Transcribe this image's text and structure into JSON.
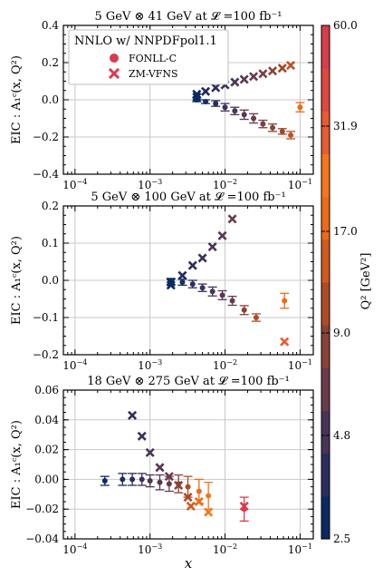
{
  "chart_data": {
    "type": "scatter",
    "xlabel": "x",
    "x_log": true,
    "xlim": [
      7e-05,
      0.15
    ],
    "x_ticks": [
      {
        "v": 0.0001,
        "b": "10",
        "e": "−4"
      },
      {
        "v": 0.001,
        "b": "10",
        "e": "−3"
      },
      {
        "v": 0.01,
        "b": "10",
        "e": "−2"
      },
      {
        "v": 0.1,
        "b": "10",
        "e": "−1"
      }
    ],
    "legend": {
      "title": "NNLO w/ NNPDFpol1.1",
      "placement": "top-left",
      "entries": [
        {
          "label": "FONLL-C",
          "marker": "circle"
        },
        {
          "label": "ZM-VFNS",
          "marker": "x"
        }
      ]
    },
    "colorbar": {
      "label": "Q² [GeV²]",
      "ticks": [
        "2.5",
        "4.8",
        "9.0",
        "17.0",
        "31.9",
        "60.0"
      ],
      "colors": [
        "#0b2a63",
        "#2b2d5e",
        "#4a3358",
        "#6b3a4c",
        "#8a4236",
        "#b04a24",
        "#d25a1c",
        "#ee6a16",
        "#f7751a",
        "#ea5a32",
        "#e2473f",
        "#d93c4b"
      ]
    },
    "panels": [
      {
        "title": "5 GeV ⊗ 41 GeV at 𝓛 =100 fb⁻¹",
        "ylabel": "EIC : A₁ᶜ(x, Q²)",
        "ylim": [
          -0.4,
          0.4
        ],
        "y_ticks": [
          "0.4",
          "0.2",
          "0.0",
          "−0.2",
          "−0.4"
        ],
        "y_tick_values": [
          0.4,
          0.2,
          0.0,
          -0.2,
          -0.4
        ],
        "fonll": [
          {
            "x": 0.0042,
            "y": 0.0,
            "err": 0.01,
            "color": "#0b2a63"
          },
          {
            "x": 0.0055,
            "y": -0.01,
            "err": 0.01,
            "color": "#1d2c60"
          },
          {
            "x": 0.0075,
            "y": -0.02,
            "err": 0.015,
            "color": "#2b2d5e"
          },
          {
            "x": 0.01,
            "y": -0.04,
            "err": 0.02,
            "color": "#3b305b"
          },
          {
            "x": 0.0135,
            "y": -0.06,
            "err": 0.02,
            "color": "#4a3358"
          },
          {
            "x": 0.018,
            "y": -0.08,
            "err": 0.025,
            "color": "#5b3652"
          },
          {
            "x": 0.024,
            "y": -0.1,
            "err": 0.025,
            "color": "#6b3a4c"
          },
          {
            "x": 0.032,
            "y": -0.13,
            "err": 0.02,
            "color": "#7b3e42"
          },
          {
            "x": 0.043,
            "y": -0.15,
            "err": 0.02,
            "color": "#8a4236"
          },
          {
            "x": 0.058,
            "y": -0.17,
            "err": 0.015,
            "color": "#a0472a"
          },
          {
            "x": 0.075,
            "y": -0.19,
            "err": 0.02,
            "color": "#c0501f"
          },
          {
            "x": 0.1,
            "y": -0.04,
            "err": 0.025,
            "color": "#ee6a16"
          }
        ],
        "zm": [
          {
            "x": 0.0042,
            "y": 0.03,
            "color": "#0b2a63"
          },
          {
            "x": 0.0042,
            "y": 0.015,
            "color": "#0b2a63"
          },
          {
            "x": 0.0055,
            "y": 0.045,
            "color": "#1d2c60"
          },
          {
            "x": 0.0075,
            "y": 0.065,
            "color": "#2b2d5e"
          },
          {
            "x": 0.01,
            "y": 0.08,
            "color": "#3b305b"
          },
          {
            "x": 0.0135,
            "y": 0.095,
            "color": "#4a3358"
          },
          {
            "x": 0.018,
            "y": 0.11,
            "color": "#5b3652"
          },
          {
            "x": 0.024,
            "y": 0.125,
            "color": "#6b3a4c"
          },
          {
            "x": 0.032,
            "y": 0.14,
            "color": "#7b3e42"
          },
          {
            "x": 0.043,
            "y": 0.155,
            "color": "#8a4236"
          },
          {
            "x": 0.058,
            "y": 0.17,
            "color": "#a0472a"
          },
          {
            "x": 0.075,
            "y": 0.185,
            "color": "#c0501f"
          }
        ]
      },
      {
        "title": "5 GeV ⊗ 100 GeV at 𝓛 =100 fb⁻¹",
        "ylabel": "EIC : A₁ᶜ(x, Q²)",
        "ylim": [
          -0.2,
          0.2
        ],
        "y_ticks": [
          "0.2",
          "0.1",
          "0.0",
          "−0.1",
          "−0.2"
        ],
        "y_tick_values": [
          0.2,
          0.1,
          0.0,
          -0.1,
          -0.2
        ],
        "fonll": [
          {
            "x": 0.0019,
            "y": -0.003,
            "err": 0.008,
            "color": "#0b2a63"
          },
          {
            "x": 0.0027,
            "y": -0.005,
            "err": 0.008,
            "color": "#1d2c60"
          },
          {
            "x": 0.0037,
            "y": -0.01,
            "err": 0.01,
            "color": "#2b2d5e"
          },
          {
            "x": 0.005,
            "y": -0.02,
            "err": 0.01,
            "color": "#3b305b"
          },
          {
            "x": 0.0068,
            "y": -0.03,
            "err": 0.012,
            "color": "#4a3358"
          },
          {
            "x": 0.0092,
            "y": -0.04,
            "err": 0.012,
            "color": "#5b3652"
          },
          {
            "x": 0.0125,
            "y": -0.055,
            "err": 0.012,
            "color": "#6b3a4c"
          },
          {
            "x": 0.018,
            "y": -0.08,
            "err": 0.012,
            "color": "#8a4236"
          },
          {
            "x": 0.026,
            "y": -0.1,
            "err": 0.01,
            "color": "#b04a24"
          },
          {
            "x": 0.062,
            "y": -0.055,
            "err": 0.02,
            "color": "#ee6a16"
          }
        ],
        "zm": [
          {
            "x": 0.0019,
            "y": -0.005,
            "color": "#0b2a63"
          },
          {
            "x": 0.0019,
            "y": -0.013,
            "color": "#0b2a63"
          },
          {
            "x": 0.0027,
            "y": 0.013,
            "color": "#1d2c60"
          },
          {
            "x": 0.0037,
            "y": 0.04,
            "color": "#2b2d5e"
          },
          {
            "x": 0.005,
            "y": 0.06,
            "color": "#3b305b"
          },
          {
            "x": 0.0068,
            "y": 0.09,
            "color": "#4a3358"
          },
          {
            "x": 0.0092,
            "y": 0.12,
            "color": "#5b3652"
          },
          {
            "x": 0.0125,
            "y": 0.165,
            "color": "#6b3a4c"
          },
          {
            "x": 0.062,
            "y": -0.165,
            "color": "#ea5a32"
          }
        ]
      },
      {
        "title": "18 GeV ⊗ 275 GeV at 𝓛 =100 fb⁻¹",
        "ylabel": "EIC : A₁ᶜ(x, Q²)",
        "ylim": [
          -0.04,
          0.06
        ],
        "y_ticks": [
          "0.06",
          "0.04",
          "0.02",
          "0.00",
          "−0.02",
          "−0.04"
        ],
        "y_tick_values": [
          0.06,
          0.04,
          0.02,
          0.0,
          -0.02,
          -0.04
        ],
        "fonll": [
          {
            "x": 0.00025,
            "y": -0.001,
            "err": 0.003,
            "color": "#0b2a63"
          },
          {
            "x": 0.00043,
            "y": 0.0,
            "err": 0.004,
            "color": "#1d2c60"
          },
          {
            "x": 0.00058,
            "y": 0.0,
            "err": 0.004,
            "color": "#2b2d5e"
          },
          {
            "x": 0.00078,
            "y": 0.0,
            "err": 0.004,
            "color": "#3b305b"
          },
          {
            "x": 0.001,
            "y": -0.001,
            "err": 0.004,
            "color": "#4a3358"
          },
          {
            "x": 0.00135,
            "y": -0.002,
            "err": 0.005,
            "color": "#5b3652"
          },
          {
            "x": 0.0018,
            "y": -0.003,
            "err": 0.005,
            "color": "#6b3a4c"
          },
          {
            "x": 0.0024,
            "y": -0.003,
            "err": 0.006,
            "color": "#8a4236"
          },
          {
            "x": 0.0032,
            "y": -0.005,
            "err": 0.007,
            "color": "#b04a24"
          },
          {
            "x": 0.0045,
            "y": -0.008,
            "err": 0.008,
            "color": "#ee6a16"
          },
          {
            "x": 0.006,
            "y": -0.011,
            "err": 0.009,
            "color": "#f7751a"
          },
          {
            "x": 0.018,
            "y": -0.02,
            "err": 0.008,
            "color": "#d93c4b"
          }
        ],
        "zm": [
          {
            "x": 0.00058,
            "y": 0.043,
            "color": "#2b2d5e"
          },
          {
            "x": 0.00078,
            "y": 0.029,
            "color": "#3b305b"
          },
          {
            "x": 0.001,
            "y": 0.018,
            "color": "#4a3358"
          },
          {
            "x": 0.00135,
            "y": 0.008,
            "color": "#5b3652"
          },
          {
            "x": 0.0018,
            "y": 0.002,
            "color": "#6b3a4c"
          },
          {
            "x": 0.0024,
            "y": -0.004,
            "color": "#8a4236"
          },
          {
            "x": 0.0032,
            "y": -0.012,
            "color": "#b04a24"
          },
          {
            "x": 0.0035,
            "y": -0.018,
            "color": "#d25a1c"
          },
          {
            "x": 0.0045,
            "y": -0.015,
            "color": "#ee6a16"
          },
          {
            "x": 0.006,
            "y": -0.022,
            "color": "#f7751a"
          },
          {
            "x": 0.018,
            "y": -0.018,
            "color": "#d93c4b"
          }
        ]
      }
    ]
  }
}
